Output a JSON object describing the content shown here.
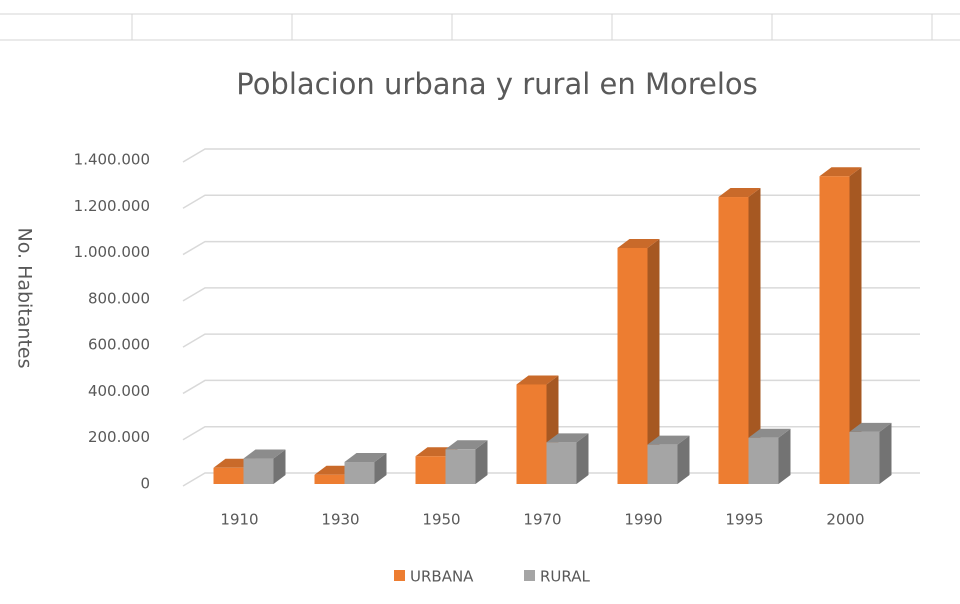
{
  "chart_data": {
    "type": "bar3d",
    "title": "Poblacion urbana y rural en Morelos",
    "y_axis_label": "No. Habitantes",
    "categories": [
      "1910",
      "1930",
      "1950",
      "1970",
      "1990",
      "1995",
      "2000"
    ],
    "series": [
      {
        "name": "URBANA",
        "color": "#ed7d31",
        "values": [
          70000,
          40000,
          120000,
          430000,
          1020000,
          1240000,
          1330000
        ]
      },
      {
        "name": "RURAL",
        "color": "#a5a5a5",
        "values": [
          110000,
          95000,
          150000,
          180000,
          170000,
          200000,
          225000
        ]
      }
    ],
    "ylim": [
      0,
      1400000
    ],
    "yticks": [
      0,
      {
        "value": 200000,
        "label": "200.000"
      },
      {
        "value": 400000,
        "label": "400.000"
      },
      {
        "value": 600000,
        "label": "600.000"
      },
      {
        "value": 800000,
        "label": "800.000"
      },
      {
        "value": 1000000,
        "label": "1.000.000"
      },
      {
        "value": 1200000,
        "label": "1.200.000"
      },
      {
        "value": 1400000,
        "label": "1.400.000"
      }
    ],
    "grid": true,
    "legend": "bottom"
  }
}
